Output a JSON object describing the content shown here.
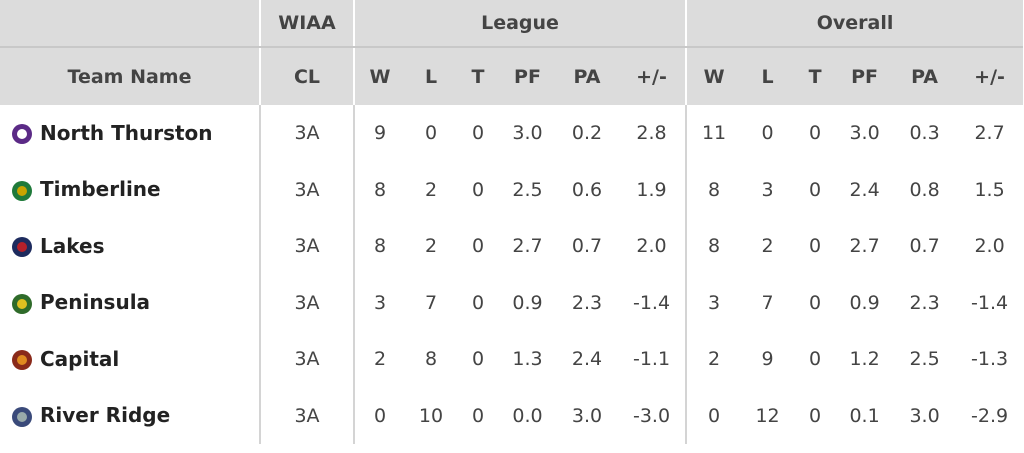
{
  "header": {
    "groups": [
      "WIAA",
      "League",
      "Overall"
    ],
    "columns": [
      "Team Name",
      "CL",
      "W",
      "L",
      "T",
      "PF",
      "PA",
      "+/-",
      "W",
      "L",
      "T",
      "PF",
      "PA",
      "+/-"
    ]
  },
  "rows": [
    {
      "team": "North Thurston",
      "cells": [
        "3A",
        "9",
        "0",
        "0",
        "3.0",
        "0.2",
        "2.8",
        "11",
        "0",
        "0",
        "3.0",
        "0.3",
        "2.7"
      ]
    },
    {
      "team": "Timberline",
      "cells": [
        "3A",
        "8",
        "2",
        "0",
        "2.5",
        "0.6",
        "1.9",
        "8",
        "3",
        "0",
        "2.4",
        "0.8",
        "1.5"
      ]
    },
    {
      "team": "Lakes",
      "cells": [
        "3A",
        "8",
        "2",
        "0",
        "2.7",
        "0.7",
        "2.0",
        "8",
        "2",
        "0",
        "2.7",
        "0.7",
        "2.0"
      ]
    },
    {
      "team": "Peninsula",
      "cells": [
        "3A",
        "3",
        "7",
        "0",
        "0.9",
        "2.3",
        "-1.4",
        "3",
        "7",
        "0",
        "0.9",
        "2.3",
        "-1.4"
      ]
    },
    {
      "team": "Capital",
      "cells": [
        "3A",
        "2",
        "8",
        "0",
        "1.3",
        "2.4",
        "-1.1",
        "2",
        "9",
        "0",
        "1.2",
        "2.5",
        "-1.3"
      ]
    },
    {
      "team": "River Ridge",
      "cells": [
        "3A",
        "0",
        "10",
        "0",
        "0.0",
        "3.0",
        "-3.0",
        "0",
        "12",
        "0",
        "0.1",
        "3.0",
        "-2.9"
      ]
    }
  ]
}
